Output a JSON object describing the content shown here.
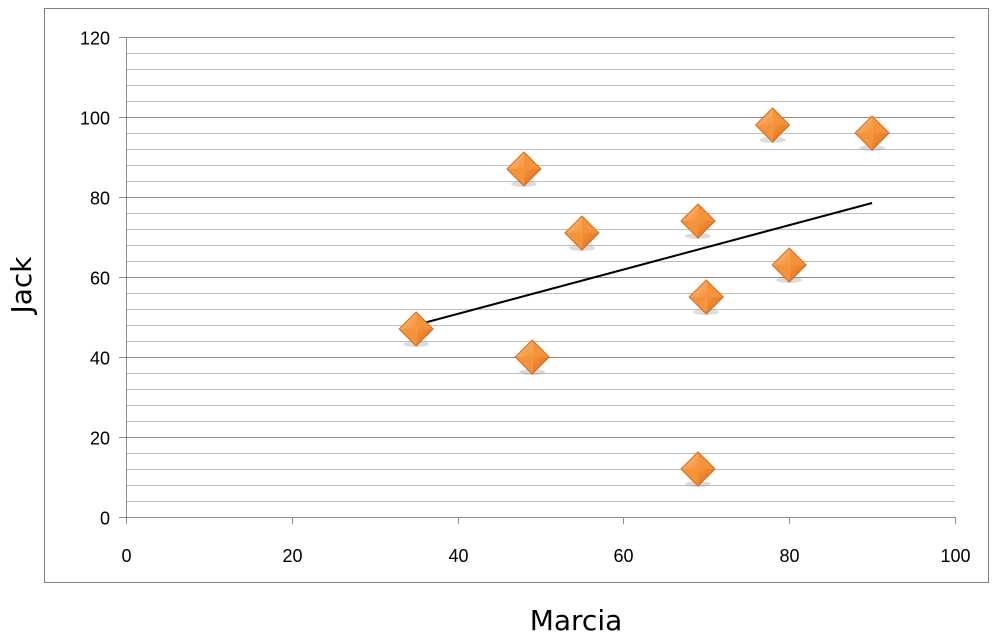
{
  "chart_data": {
    "type": "scatter",
    "title": "",
    "xlabel": "Marcia",
    "ylabel": "Jack",
    "xlim": [
      0,
      100
    ],
    "ylim": [
      0,
      120
    ],
    "x_ticks": [
      0,
      20,
      40,
      60,
      80,
      100
    ],
    "y_ticks": [
      0,
      20,
      40,
      60,
      80,
      100,
      120
    ],
    "y_minor_step": 4,
    "grid": "horizontal",
    "legend": "none",
    "marker": "diamond",
    "series": [
      {
        "x": [
          35,
          49,
          48,
          55,
          69,
          70,
          69,
          78,
          80,
          90
        ],
        "y": [
          47,
          40,
          87,
          71,
          74,
          55,
          12,
          98,
          63,
          96
        ]
      }
    ],
    "trendline": {
      "type": "linear",
      "x": [
        35,
        90
      ],
      "y": [
        48,
        78.5
      ]
    },
    "colors": {
      "marker_fill": "#F4933A",
      "marker_light": "#FBC28A",
      "marker_dark": "#D9691A",
      "major_grid": "#8C8C8C",
      "minor_grid": "#BFBFBF",
      "trendline": "#000000",
      "frame": "#7F7F7F"
    }
  }
}
